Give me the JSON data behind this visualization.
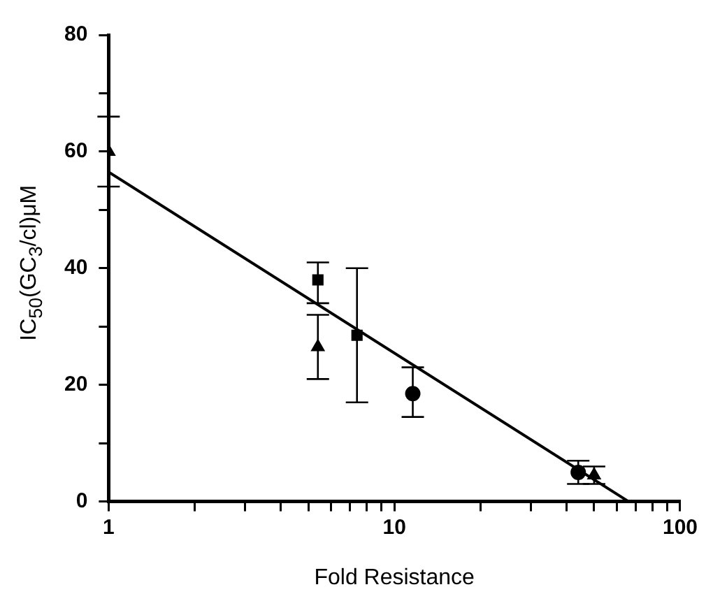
{
  "chart_data": {
    "type": "scatter",
    "xlabel": "Fold Resistance",
    "ylabel": "IC$_{50}$(GC$_{3}$/cl)μM",
    "log": "x",
    "grid": false,
    "xlim": [
      1,
      100
    ],
    "xticks": [
      1,
      {
        "value": 2,
        "label": null
      },
      {
        "value": 3,
        "label": null
      },
      {
        "value": 4,
        "label": null
      },
      {
        "value": 5,
        "label": null
      },
      {
        "value": 6,
        "label": null
      },
      {
        "value": 7,
        "label": null
      },
      {
        "value": 8,
        "label": null
      },
      {
        "value": 9,
        "label": null
      },
      10,
      {
        "value": 20,
        "label": null
      },
      {
        "value": 30,
        "label": null
      },
      {
        "value": 40,
        "label": null
      },
      {
        "value": 50,
        "label": null
      },
      {
        "value": 60,
        "label": null
      },
      {
        "value": 70,
        "label": null
      },
      {
        "value": 80,
        "label": null
      },
      {
        "value": 90,
        "label": null
      },
      100
    ],
    "ylim": [
      0,
      80
    ],
    "yticks": [
      0,
      {
        "value": 10,
        "label": null
      },
      20,
      {
        "value": 30,
        "label": null
      },
      40,
      {
        "value": 50,
        "label": null
      },
      60,
      {
        "value": 70,
        "label": null
      },
      80
    ],
    "series": [
      {
        "color": "#000000",
        "marker": "triangle",
        "x": [
          1.0
        ],
        "values": [
          60
        ],
        "errors": [
          [
            54,
            66
          ]
        ]
      },
      {
        "color": "#000000",
        "marker": "square",
        "x": [
          5.4
        ],
        "values": [
          38
        ],
        "errors": [
          [
            34,
            41
          ]
        ]
      },
      {
        "color": "#000000",
        "marker": "triangle",
        "x": [
          5.4
        ],
        "values": [
          26.5
        ],
        "errors": [
          [
            21,
            32
          ]
        ]
      },
      {
        "color": "#000000",
        "marker": "square",
        "x": [
          7.4
        ],
        "values": [
          28.5
        ],
        "errors": [
          [
            17,
            40
          ]
        ]
      },
      {
        "color": "#000000",
        "marker": "circle",
        "x": [
          11.6
        ],
        "values": [
          18.5
        ],
        "errors": [
          [
            14.5,
            23
          ]
        ]
      },
      {
        "color": "#000000",
        "marker": "circle",
        "x": [
          44
        ],
        "values": [
          5
        ],
        "errors": [
          [
            3,
            7
          ]
        ]
      },
      {
        "color": "#000000",
        "marker": "triangle",
        "x": [
          50
        ],
        "values": [
          4.5
        ],
        "errors": [
          [
            3,
            6
          ]
        ]
      },
      {
        "type": "line",
        "color": "#000000",
        "marker": "none",
        "x": [
          1,
          66
        ],
        "values": [
          56.5,
          0
        ]
      }
    ]
  }
}
